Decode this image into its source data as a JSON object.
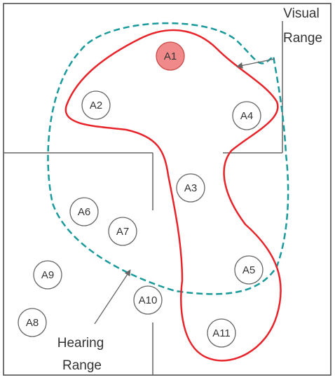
{
  "agents": [
    {
      "label": "A1",
      "highlight": true
    },
    {
      "label": "A2"
    },
    {
      "label": "A4"
    },
    {
      "label": "A3"
    },
    {
      "label": "A6"
    },
    {
      "label": "A7"
    },
    {
      "label": "A9"
    },
    {
      "label": "A5"
    },
    {
      "label": "A10"
    },
    {
      "label": "A8"
    },
    {
      "label": "A11"
    }
  ],
  "visual_range": {
    "lines": [
      "Visual",
      "Range"
    ]
  },
  "hearing_range": {
    "lines": [
      "Hearing",
      "Range"
    ]
  }
}
